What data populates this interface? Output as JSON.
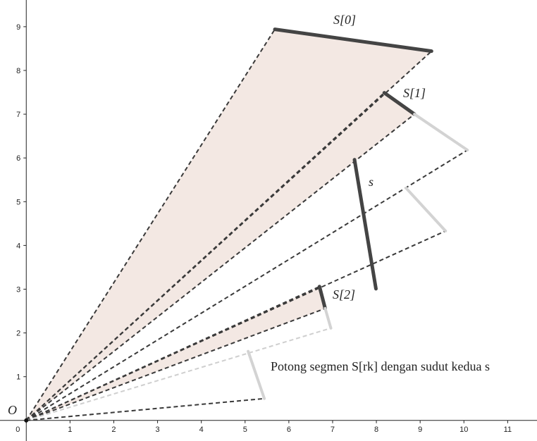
{
  "axes": {
    "xlim": [
      -0.6,
      11.67
    ],
    "ylim": [
      -0.47,
      9.61
    ],
    "xticks": [
      0,
      1,
      2,
      3,
      4,
      5,
      6,
      7,
      8,
      9,
      10,
      11
    ],
    "yticks": [
      1,
      2,
      3,
      4,
      5,
      6,
      7,
      8,
      9
    ]
  },
  "origin_label": "O",
  "segments": [
    {
      "label": "S[0]",
      "style": "dark",
      "p1": [
        5.68,
        8.94
      ],
      "p2": [
        9.26,
        8.44
      ],
      "rays": "both",
      "fill": true
    },
    {
      "label": "S[1]",
      "style": "dark",
      "p1": [
        8.18,
        7.49
      ],
      "p2": [
        8.87,
        7.0
      ],
      "rays": "both",
      "fill": true
    },
    {
      "style": "gray",
      "p1": [
        8.87,
        7.0
      ],
      "p2": [
        10.08,
        6.18
      ],
      "rays": "end"
    },
    {
      "label": "s",
      "style": "dark",
      "p1": [
        7.5,
        5.96
      ],
      "p2": [
        7.99,
        3.01
      ],
      "rays": "none"
    },
    {
      "style": "gray",
      "p1": [
        8.68,
        5.31
      ],
      "p2": [
        9.58,
        4.33
      ],
      "rays": "end"
    },
    {
      "label": "S[2]",
      "style": "dark",
      "p1": [
        6.7,
        3.06
      ],
      "p2": [
        6.83,
        2.56
      ],
      "rays": "both",
      "fill": true
    },
    {
      "style": "gray",
      "p1": [
        6.83,
        2.56
      ],
      "p2": [
        6.96,
        2.11
      ],
      "rays": "end-light"
    },
    {
      "style": "gray",
      "p1": [
        5.07,
        1.58
      ],
      "p2": [
        5.44,
        0.5
      ],
      "rays": "end"
    }
  ],
  "caption": "Potong segmen S[rk] dengan sudut kedua s"
}
